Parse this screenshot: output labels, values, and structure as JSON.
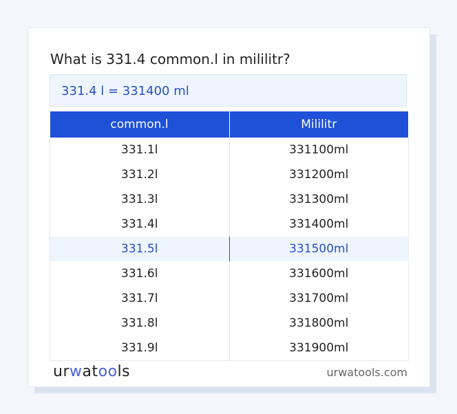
{
  "title": "What is 331.4 common.l in mililitr?",
  "result": "331.4 l = 331400 ml",
  "table": {
    "headers": [
      "common.l",
      "Mililitr"
    ],
    "rows": [
      [
        "331.1l",
        "331100ml"
      ],
      [
        "331.2l",
        "331200ml"
      ],
      [
        "331.3l",
        "331300ml"
      ],
      [
        "331.4l",
        "331400ml"
      ],
      [
        "331.5l",
        "331500ml"
      ],
      [
        "331.6l",
        "331600ml"
      ],
      [
        "331.7l",
        "331700ml"
      ],
      [
        "331.8l",
        "331800ml"
      ],
      [
        "331.9l",
        "331900ml"
      ]
    ],
    "highlighted_row": 4
  },
  "footer": {
    "logo_a": "ur",
    "logo_b": "woo",
    "logo_c": "ls",
    "logo": "urwatools",
    "site": "urwatools.com"
  },
  "colors": {
    "accent": "#1e50d8",
    "highlight": "#eef5fe"
  }
}
